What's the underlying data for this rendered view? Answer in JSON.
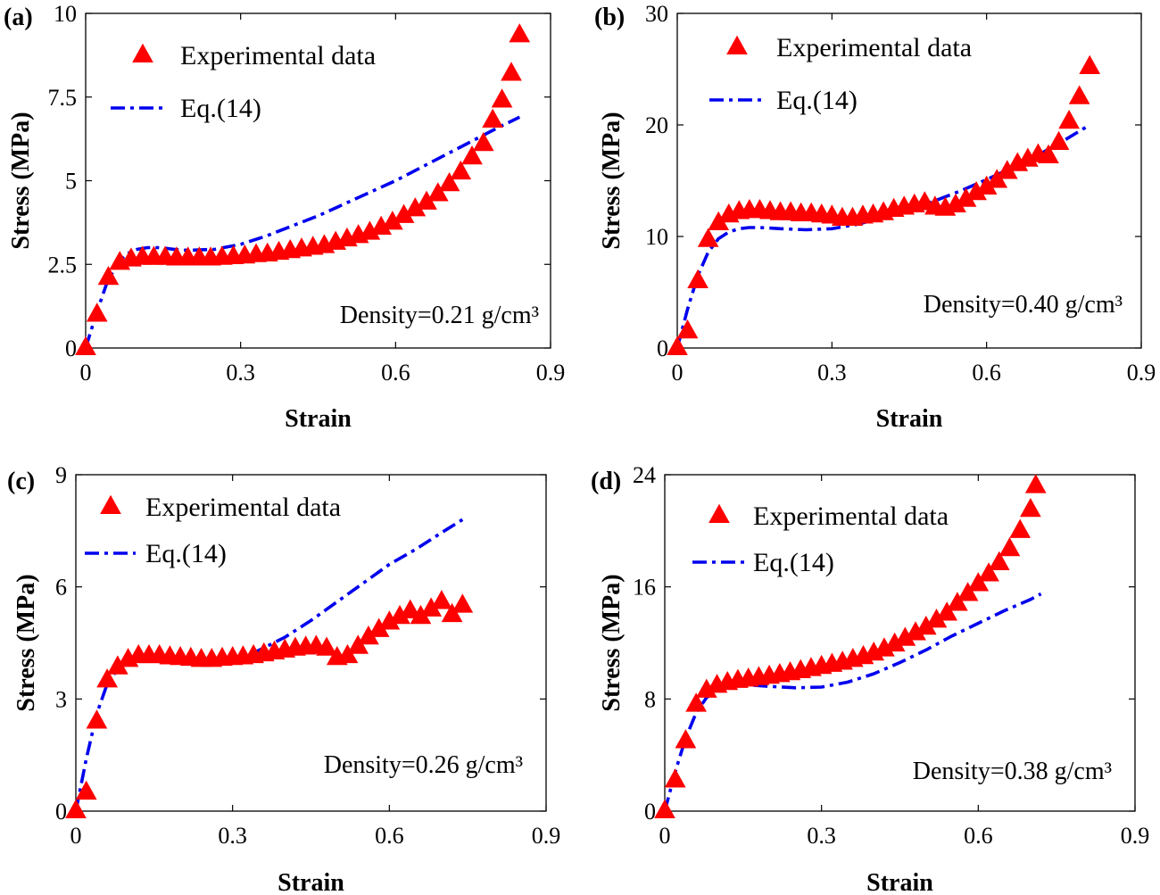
{
  "chart_data": [
    {
      "type": "scatter",
      "panel_label": "(a)",
      "xlabel": "Strain",
      "ylabel": "Stress (MPa)",
      "xlim": [
        0,
        0.9
      ],
      "ylim": [
        0,
        10
      ],
      "xticks": [
        0,
        0.3,
        0.6,
        0.9
      ],
      "xtick_labels": [
        "0",
        "0.3",
        "0.6",
        "0.9"
      ],
      "yticks": [
        0,
        2.5,
        5,
        7.5,
        10
      ],
      "ytick_labels": [
        "0",
        "2.5",
        "5",
        "7.5",
        "10"
      ],
      "annotation": "Density=0.21 g/cm³",
      "legend": [
        "Experimental data",
        "Eq.(14)"
      ],
      "series": [
        {
          "name": "Experimental data",
          "marker": "triangle",
          "color": "#ff0000",
          "x": [
            0,
            0.022,
            0.044,
            0.066,
            0.088,
            0.11,
            0.132,
            0.154,
            0.176,
            0.198,
            0.22,
            0.242,
            0.264,
            0.286,
            0.308,
            0.33,
            0.352,
            0.374,
            0.396,
            0.418,
            0.44,
            0.462,
            0.484,
            0.506,
            0.528,
            0.55,
            0.572,
            0.594,
            0.616,
            0.638,
            0.66,
            0.682,
            0.704,
            0.726,
            0.748,
            0.77,
            0.788,
            0.806,
            0.824,
            0.84
          ],
          "y": [
            0,
            1.0,
            2.1,
            2.55,
            2.65,
            2.7,
            2.7,
            2.7,
            2.68,
            2.68,
            2.68,
            2.68,
            2.7,
            2.72,
            2.74,
            2.78,
            2.8,
            2.85,
            2.9,
            2.95,
            3.0,
            3.05,
            3.15,
            3.25,
            3.35,
            3.45,
            3.6,
            3.75,
            3.95,
            4.15,
            4.35,
            4.6,
            4.9,
            5.25,
            5.7,
            6.1,
            6.8,
            7.4,
            8.2,
            9.35
          ]
        },
        {
          "name": "Eq.(14)",
          "style": "dash-dot",
          "color": "#0000ee",
          "x": [
            0,
            0.02,
            0.04,
            0.06,
            0.08,
            0.1,
            0.12,
            0.14,
            0.16,
            0.18,
            0.2,
            0.25,
            0.3,
            0.35,
            0.4,
            0.45,
            0.5,
            0.55,
            0.6,
            0.65,
            0.7,
            0.75,
            0.8,
            0.84
          ],
          "y": [
            0,
            1.0,
            1.9,
            2.5,
            2.82,
            2.95,
            3.0,
            3.0,
            2.97,
            2.93,
            2.92,
            2.95,
            3.1,
            3.35,
            3.65,
            3.95,
            4.3,
            4.65,
            5.0,
            5.4,
            5.8,
            6.2,
            6.6,
            6.9
          ]
        }
      ]
    },
    {
      "type": "scatter",
      "panel_label": "(b)",
      "xlabel": "Strain",
      "ylabel": "Stress (MPa)",
      "xlim": [
        0,
        0.9
      ],
      "ylim": [
        0,
        30
      ],
      "xticks": [
        0,
        0.3,
        0.6,
        0.9
      ],
      "xtick_labels": [
        "0",
        "0.3",
        "0.6",
        "0.9"
      ],
      "yticks": [
        0,
        10,
        20,
        30
      ],
      "ytick_labels": [
        "0",
        "10",
        "20",
        "30"
      ],
      "annotation": "Density=0.40 g/cm³",
      "legend": [
        "Experimental data",
        "Eq.(14)"
      ],
      "series": [
        {
          "name": "Experimental data",
          "marker": "triangle",
          "color": "#ff0000",
          "x": [
            0,
            0.02,
            0.04,
            0.06,
            0.08,
            0.1,
            0.12,
            0.14,
            0.16,
            0.18,
            0.2,
            0.22,
            0.24,
            0.26,
            0.28,
            0.3,
            0.32,
            0.34,
            0.36,
            0.38,
            0.4,
            0.42,
            0.44,
            0.46,
            0.48,
            0.5,
            0.52,
            0.54,
            0.56,
            0.58,
            0.6,
            0.62,
            0.64,
            0.66,
            0.68,
            0.7,
            0.72,
            0.74,
            0.76,
            0.78,
            0.8
          ],
          "y": [
            0,
            1.5,
            6.0,
            9.7,
            11.2,
            11.9,
            12.2,
            12.3,
            12.3,
            12.2,
            12.1,
            12.1,
            12.0,
            12.0,
            11.9,
            11.8,
            11.6,
            11.6,
            11.8,
            11.9,
            12.1,
            12.4,
            12.6,
            12.8,
            13.0,
            12.6,
            12.5,
            12.8,
            13.3,
            13.9,
            14.4,
            15.0,
            15.8,
            16.5,
            16.9,
            17.3,
            17.2,
            18.4,
            20.3,
            22.5,
            25.2
          ]
        },
        {
          "name": "Eq.(14)",
          "style": "dash-dot",
          "color": "#0000ee",
          "x": [
            0,
            0.02,
            0.04,
            0.06,
            0.08,
            0.1,
            0.12,
            0.14,
            0.16,
            0.18,
            0.2,
            0.25,
            0.3,
            0.35,
            0.4,
            0.45,
            0.5,
            0.55,
            0.6,
            0.65,
            0.7,
            0.75,
            0.8
          ],
          "y": [
            0,
            3.5,
            6.5,
            8.6,
            9.8,
            10.4,
            10.7,
            10.8,
            10.8,
            10.75,
            10.7,
            10.6,
            10.7,
            11.1,
            11.7,
            12.4,
            13.2,
            14.1,
            15.1,
            16.2,
            17.3,
            18.6,
            20.0
          ]
        }
      ]
    },
    {
      "type": "scatter",
      "panel_label": "(c)",
      "xlabel": "Strain",
      "ylabel": "Stress (MPa)",
      "xlim": [
        0,
        0.9
      ],
      "ylim": [
        0,
        9
      ],
      "xticks": [
        0,
        0.3,
        0.6,
        0.9
      ],
      "xtick_labels": [
        "0",
        "0.3",
        "0.6",
        "0.9"
      ],
      "yticks": [
        0,
        3,
        6,
        9
      ],
      "ytick_labels": [
        "0",
        "3",
        "6",
        "9"
      ],
      "annotation": "Density=0.26 g/cm³",
      "legend": [
        "Experimental data",
        "Eq.(14)"
      ],
      "series": [
        {
          "name": "Experimental data",
          "marker": "triangle",
          "color": "#ff0000",
          "x": [
            0,
            0.02,
            0.04,
            0.06,
            0.08,
            0.1,
            0.12,
            0.14,
            0.16,
            0.18,
            0.2,
            0.22,
            0.24,
            0.26,
            0.28,
            0.3,
            0.32,
            0.34,
            0.36,
            0.38,
            0.4,
            0.42,
            0.44,
            0.46,
            0.48,
            0.5,
            0.52,
            0.54,
            0.56,
            0.58,
            0.6,
            0.62,
            0.64,
            0.66,
            0.68,
            0.7,
            0.72,
            0.74
          ],
          "y": [
            0,
            0.5,
            2.4,
            3.5,
            3.85,
            4.05,
            4.15,
            4.15,
            4.15,
            4.12,
            4.1,
            4.08,
            4.05,
            4.05,
            4.08,
            4.1,
            4.12,
            4.15,
            4.2,
            4.25,
            4.3,
            4.35,
            4.38,
            4.4,
            4.35,
            4.1,
            4.15,
            4.4,
            4.65,
            4.85,
            5.05,
            5.2,
            5.35,
            5.2,
            5.4,
            5.6,
            5.25,
            5.5
          ]
        },
        {
          "name": "Eq.(14)",
          "style": "dash-dot",
          "color": "#0000ee",
          "x": [
            0,
            0.02,
            0.04,
            0.06,
            0.08,
            0.1,
            0.12,
            0.14,
            0.16,
            0.2,
            0.25,
            0.3,
            0.35,
            0.4,
            0.45,
            0.5,
            0.55,
            0.6,
            0.65,
            0.7,
            0.74
          ],
          "y": [
            0,
            1.4,
            2.6,
            3.4,
            3.8,
            3.98,
            4.03,
            4.03,
            4.0,
            3.96,
            3.96,
            4.05,
            4.3,
            4.65,
            5.1,
            5.6,
            6.1,
            6.6,
            7.0,
            7.45,
            7.8
          ]
        }
      ]
    },
    {
      "type": "scatter",
      "panel_label": "(d)",
      "xlabel": "Strain",
      "ylabel": "Stress (MPa)",
      "xlim": [
        0,
        0.9
      ],
      "ylim": [
        0,
        24
      ],
      "xticks": [
        0,
        0.3,
        0.6,
        0.9
      ],
      "xtick_labels": [
        "0",
        "0.3",
        "0.6",
        "0.9"
      ],
      "yticks": [
        0,
        8,
        16,
        24
      ],
      "ytick_labels": [
        "0",
        "8",
        "16",
        "24"
      ],
      "annotation": "Density=0.38 g/cm³",
      "legend": [
        "Experimental data",
        "Eq.(14)"
      ],
      "series": [
        {
          "name": "Experimental data",
          "marker": "triangle",
          "color": "#ff0000",
          "x": [
            0,
            0.02,
            0.04,
            0.06,
            0.08,
            0.1,
            0.12,
            0.14,
            0.16,
            0.18,
            0.2,
            0.22,
            0.24,
            0.26,
            0.28,
            0.3,
            0.32,
            0.34,
            0.36,
            0.38,
            0.4,
            0.42,
            0.44,
            0.46,
            0.48,
            0.5,
            0.52,
            0.54,
            0.56,
            0.58,
            0.6,
            0.62,
            0.64,
            0.66,
            0.68,
            0.7,
            0.71
          ],
          "y": [
            0,
            2.2,
            5.0,
            7.6,
            8.6,
            8.95,
            9.15,
            9.3,
            9.4,
            9.5,
            9.6,
            9.72,
            9.85,
            10.0,
            10.15,
            10.3,
            10.45,
            10.6,
            10.8,
            11.0,
            11.25,
            11.55,
            11.9,
            12.3,
            12.7,
            13.1,
            13.6,
            14.1,
            14.8,
            15.5,
            16.2,
            16.9,
            17.7,
            18.7,
            20.0,
            21.5,
            23.2
          ]
        },
        {
          "name": "Eq.(14)",
          "style": "dash-dot",
          "color": "#0000ee",
          "x": [
            0,
            0.02,
            0.04,
            0.06,
            0.08,
            0.1,
            0.12,
            0.14,
            0.16,
            0.2,
            0.25,
            0.3,
            0.35,
            0.4,
            0.45,
            0.5,
            0.55,
            0.6,
            0.65,
            0.7,
            0.72
          ],
          "y": [
            0,
            2.8,
            5.2,
            7.0,
            8.1,
            8.6,
            8.85,
            8.95,
            9.0,
            8.9,
            8.8,
            8.85,
            9.2,
            9.8,
            10.6,
            11.5,
            12.5,
            13.4,
            14.3,
            15.1,
            15.5
          ]
        }
      ]
    }
  ]
}
